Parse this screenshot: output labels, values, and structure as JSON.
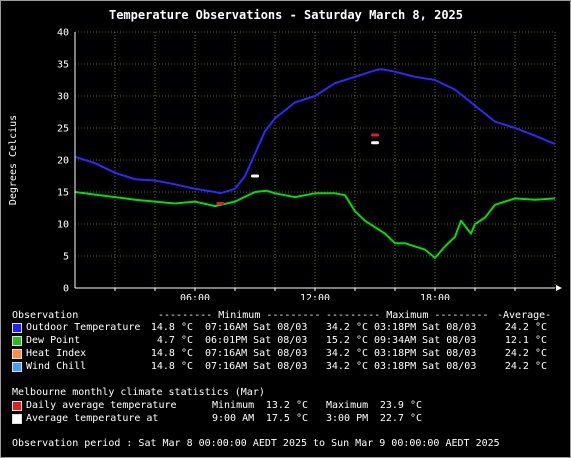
{
  "chart_data": {
    "type": "line",
    "title": "Temperature Observations - Saturday March 8, 2025",
    "ylabel": "Degrees Celcius",
    "xlabel": "",
    "ylim": [
      0,
      40
    ],
    "xlim": [
      0,
      24
    ],
    "y_ticks": [
      "0",
      "5",
      "10",
      "15",
      "20",
      "25",
      "30",
      "35",
      "40"
    ],
    "x_ticks": [
      {
        "x": 6,
        "label": "06:00"
      },
      {
        "x": 12,
        "label": "12:00"
      },
      {
        "x": 18,
        "label": "18:00"
      }
    ],
    "grid": true,
    "series": [
      {
        "name": "Outdoor Temperature",
        "color": "#2b2bff",
        "x": [
          0,
          1,
          2,
          3,
          4,
          5,
          6,
          7,
          7.27,
          8,
          8.5,
          9,
          9.5,
          10,
          11,
          12,
          13,
          14,
          15,
          15.3,
          16,
          17,
          18,
          19,
          20,
          21,
          22,
          23,
          24
        ],
        "y": [
          20.5,
          19.5,
          18,
          17,
          16.8,
          16.2,
          15.5,
          15.0,
          14.8,
          15.5,
          17.5,
          21,
          24.5,
          26.5,
          29,
          30,
          32,
          33,
          34,
          34.2,
          33.8,
          33,
          32.5,
          31,
          28.5,
          26,
          25,
          23.8,
          22.5
        ]
      },
      {
        "name": "Dew Point",
        "color": "#00e000",
        "x": [
          0,
          1,
          2,
          3,
          4,
          5,
          6,
          7,
          8,
          9,
          9.57,
          10,
          11,
          12,
          13,
          13.5,
          14,
          14.5,
          15,
          15.5,
          16,
          16.5,
          17,
          17.5,
          18,
          18.5,
          19,
          19.3,
          19.8,
          20,
          20.5,
          21,
          22,
          23,
          24
        ],
        "y": [
          15,
          14.6,
          14.2,
          13.8,
          13.5,
          13.2,
          13.5,
          12.8,
          13.5,
          15,
          15.2,
          14.8,
          14.2,
          14.8,
          14.8,
          14.5,
          12,
          10.5,
          9.5,
          8.5,
          7,
          7,
          6.5,
          6,
          4.7,
          6.5,
          8,
          10.5,
          8.5,
          10,
          11,
          13,
          14,
          13.8,
          14
        ]
      }
    ],
    "markers": [
      {
        "name": "Daily average temperature minimum",
        "color": "#e02020",
        "x": 7.27,
        "y": 13.2
      },
      {
        "name": "Daily average temperature maximum",
        "color": "#e02020",
        "x": 15,
        "y": 23.9
      },
      {
        "name": "Average temperature minimum",
        "color": "#ffffff",
        "x": 9,
        "y": 17.5
      },
      {
        "name": "Average temperature maximum",
        "color": "#ffffff",
        "x": 15,
        "y": 22.7
      }
    ]
  },
  "table": {
    "head": {
      "observation": "Observation",
      "minimum": "--------- Minimum ---------",
      "maximum": "--------- Maximum ---------",
      "average": "-Average-"
    },
    "rows": [
      {
        "name": "Outdoor Temperature",
        "color": "#2020ff",
        "min_val": "14.8 °C",
        "min_time": "07:16AM Sat 08/03",
        "max_val": "34.2 °C",
        "max_time": "03:18PM Sat 08/03",
        "avg": "24.2 °C"
      },
      {
        "name": "Dew Point",
        "color": "#20c020",
        "min_val": "4.7 °C",
        "min_time": "06:01PM Sat 08/03",
        "max_val": "15.2 °C",
        "max_time": "09:34AM Sat 08/03",
        "avg": "12.1 °C"
      },
      {
        "name": "Heat Index",
        "color": "#ff8c40",
        "min_val": "14.8 °C",
        "min_time": "07:16AM Sat 08/03",
        "max_val": "34.2 °C",
        "max_time": "03:18PM Sat 08/03",
        "avg": "24.2 °C"
      },
      {
        "name": "Wind Chill",
        "color": "#40a0ff",
        "min_val": "14.8 °C",
        "min_time": "07:16AM Sat 08/03",
        "max_val": "34.2 °C",
        "max_time": "03:18PM Sat 08/03",
        "avg": "24.2 °C"
      }
    ]
  },
  "climate": {
    "title": "Melbourne monthly climate statistics (Mar)",
    "rows": [
      {
        "label": "Daily average temperature",
        "color": "#e02020",
        "min_label": "Minimum",
        "min_time": "",
        "min_val": "13.2 °C",
        "max_label": "Maximum",
        "max_time": "",
        "max_val": "23.9 °C"
      },
      {
        "label": "Average temperature at",
        "color": "#ffffff",
        "min_label": "",
        "min_time": "9:00 AM",
        "min_val": "17.5 °C",
        "max_label": "",
        "max_time": "3:00 PM",
        "max_val": "22.7 °C"
      }
    ]
  },
  "footer": "Observation period : Sat Mar 8 00:00:00 AEDT 2025 to Sun Mar 9 00:00:00 AEDT 2025"
}
